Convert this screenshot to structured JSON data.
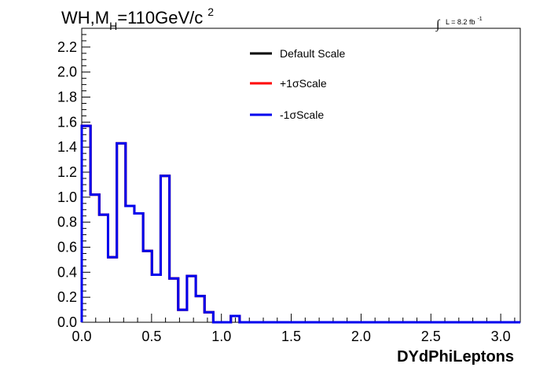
{
  "title": {
    "prefix": "WH,M",
    "subscript": "H",
    "value": "=110GeV/c",
    "superscript": "2"
  },
  "luminosity": {
    "integral": "∫",
    "text": "L = 8.2 fb",
    "exponent": "-1"
  },
  "chart_data": {
    "type": "line",
    "xlabel": "DYdPhiLeptons",
    "ylabel": "",
    "xlim": [
      0.0,
      3.14
    ],
    "ylim": [
      0.0,
      2.35
    ],
    "x_ticks": [
      "0.0",
      "0.5",
      "1.0",
      "1.5",
      "2.0",
      "2.5",
      "3.0"
    ],
    "y_ticks": [
      "0.0",
      "0.2",
      "0.4",
      "0.6",
      "0.8",
      "1.0",
      "1.2",
      "1.4",
      "1.6",
      "1.8",
      "2.0",
      "2.2"
    ],
    "grid": false,
    "legend_position": "top-center",
    "bin_edges": [
      0.0,
      0.0628,
      0.1256,
      0.1884,
      0.2512,
      0.314,
      0.3768,
      0.4396,
      0.5024,
      0.5652,
      0.628,
      0.6908,
      0.7536,
      0.8164,
      0.8792,
      0.942,
      1.0048,
      1.0676,
      1.1304,
      1.1932,
      3.14
    ],
    "series": [
      {
        "name": "Default Scale",
        "color": "#000000",
        "values": [
          1.57,
          1.02,
          0.86,
          0.52,
          1.43,
          0.93,
          0.87,
          0.57,
          0.38,
          1.17,
          0.35,
          0.1,
          0.37,
          0.21,
          0.08,
          0.0,
          0.0,
          0.05,
          0.0,
          0.0
        ]
      },
      {
        "name": "+1σScale",
        "color": "#ff0000",
        "values": [
          1.57,
          1.02,
          0.86,
          0.52,
          1.43,
          0.93,
          0.87,
          0.57,
          0.38,
          1.17,
          0.35,
          0.1,
          0.37,
          0.21,
          0.08,
          0.0,
          0.0,
          0.05,
          0.0,
          0.0
        ]
      },
      {
        "name": "-1σScale",
        "color": "#0000ee",
        "values": [
          1.57,
          1.02,
          0.86,
          0.52,
          1.43,
          0.93,
          0.87,
          0.57,
          0.38,
          1.17,
          0.35,
          0.1,
          0.37,
          0.21,
          0.08,
          0.0,
          0.0,
          0.05,
          0.0,
          0.0
        ]
      }
    ]
  }
}
